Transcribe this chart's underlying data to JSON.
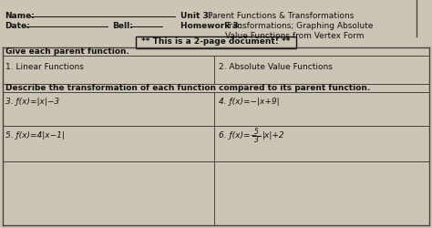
{
  "bg_color": "#ccc5b5",
  "text_color": "#111111",
  "border_color": "#444444",
  "header": {
    "name_label": "Name:",
    "date_label": "Date:",
    "bell_label": "Bell:",
    "unit_bold": "Unit 3:",
    "unit_rest": " Parent Functions & Transformations",
    "hw_bold": "Homework 3:",
    "hw_rest": " Transformations; Graphing Absolute",
    "hw_rest2": "Value Functions from Vertex Form"
  },
  "banner": "** This is a 2-page document! **",
  "section1": "Give each parent function.",
  "item1": "1. Linear Functions",
  "item2": "2. Absolute Value Functions",
  "section2": "Describe the transformation of each function compared to its parent function.",
  "p3": "3. ƒ(x)=|x|−3",
  "p4": "4. ƒ(x)=−|x+9|",
  "p5": "5. ƒ(x)=4|x−1|",
  "p6pre": "6. ƒ(x)=−",
  "p6num": "5",
  "p6den": "3",
  "p6post": "|x|+2"
}
